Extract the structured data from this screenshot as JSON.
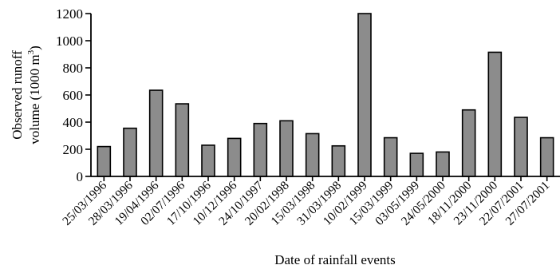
{
  "chart_data": {
    "type": "bar",
    "xlabel": "Date of rainfall events",
    "ylabel_line1": "Observed runoff",
    "ylabel_line2_prefix": "volume (1000 m",
    "ylabel_line2_sup": "3",
    "ylabel_line2_suffix": ")",
    "ylim": [
      0,
      1200
    ],
    "yticks": [
      0,
      200,
      400,
      600,
      800,
      1000,
      1200
    ],
    "categories": [
      "25/03/1996",
      "28/03/1996",
      "19/04/1996",
      "02/07/1996",
      "17/10/1996",
      "10/12/1996",
      "24/10/1997",
      "20/02/1998",
      "15/03/1998",
      "31/03/1998",
      "10/02/1999",
      "15/03/1999",
      "03/05/1999",
      "24/05/2000",
      "18/11/2000",
      "23/11/2000",
      "22/07/2001",
      "27/07/2001"
    ],
    "values": [
      220,
      355,
      635,
      535,
      230,
      280,
      390,
      410,
      315,
      225,
      1200,
      285,
      170,
      180,
      490,
      915,
      435,
      285
    ],
    "bar_color": "#8c8c8c",
    "bar_edge_color": "#000000",
    "grid": false,
    "legend": false
  }
}
